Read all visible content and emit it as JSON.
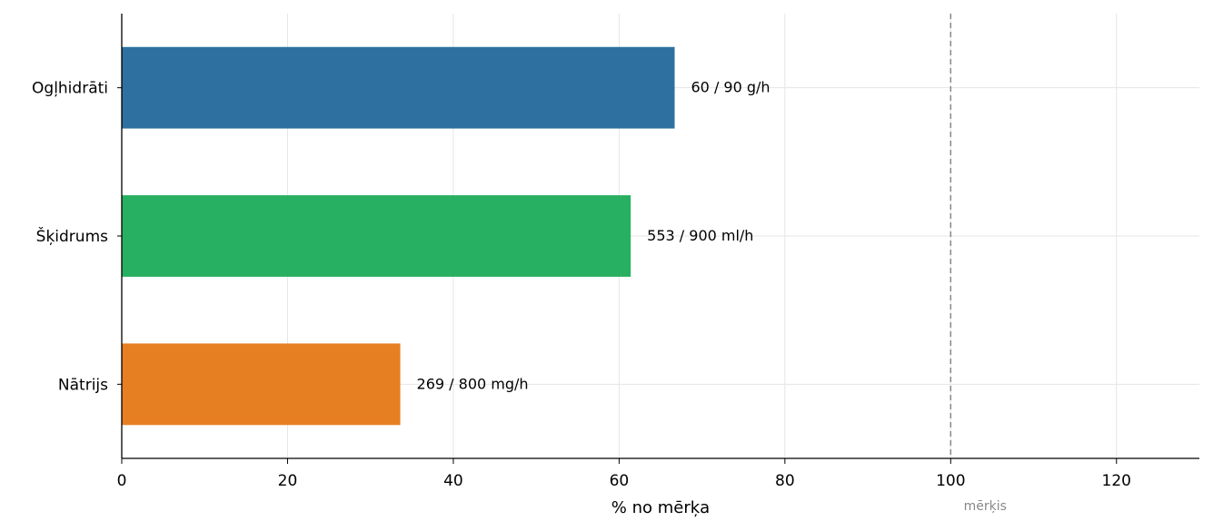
{
  "chart_data": {
    "type": "bar",
    "orientation": "horizontal",
    "categories": [
      "Ogļhidrāti",
      "Šķidrums",
      "Nātrijs"
    ],
    "values": [
      66.7,
      61.4,
      33.6
    ],
    "bar_labels": [
      "60 / 90 g/h",
      "553 / 900 ml/h",
      "269 / 800 mg/h"
    ],
    "colors": [
      "#2e71a0",
      "#28b062",
      "#e67f22"
    ],
    "xlabel": "% no mērķa",
    "ylabel": "",
    "xlim": [
      0,
      130
    ],
    "xticks": [
      0,
      20,
      40,
      60,
      80,
      100,
      120
    ],
    "target": {
      "value": 100,
      "label": "mērķis",
      "color": "#888888"
    },
    "grid": true
  }
}
